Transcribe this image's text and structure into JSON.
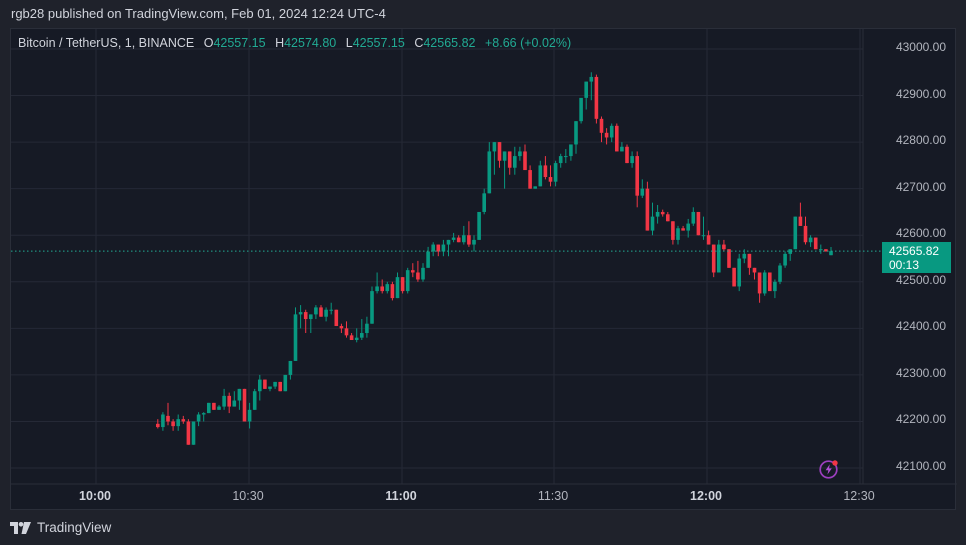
{
  "header": {
    "published_line": "rgb28 published on TradingView.com, Feb 01, 2024 12:24 UTC-4"
  },
  "legend": {
    "symbol": "Bitcoin / TetherUS, 1, BINANCE",
    "open_label": "O",
    "open": "42557.15",
    "high_label": "H",
    "high": "42574.80",
    "low_label": "L",
    "low": "42557.15",
    "close_label": "C",
    "close": "42565.82",
    "change": "+8.66 (+0.02%)"
  },
  "last_price": {
    "value": "42565.82",
    "countdown": "00:13"
  },
  "footer": {
    "brand": "TradingView"
  },
  "colors": {
    "up": "#089981",
    "down": "#f23645",
    "background": "#161a25",
    "grid": "#252936",
    "last_line": "#22ab94"
  },
  "chart_data": {
    "type": "candlestick",
    "title": "Bitcoin / TetherUS, 1, BINANCE",
    "xlabel": "",
    "ylabel": "",
    "ylim": [
      42070,
      43030
    ],
    "y_ticks": [
      "43000.00",
      "42900.00",
      "42800.00",
      "42700.00",
      "42600.00",
      "42500.00",
      "42400.00",
      "42300.00",
      "42200.00",
      "42100.00"
    ],
    "x_ticks": [
      {
        "label": "10:00",
        "bold": true
      },
      {
        "label": "10:30",
        "bold": false
      },
      {
        "label": "11:00",
        "bold": true
      },
      {
        "label": "11:30",
        "bold": false
      },
      {
        "label": "12:00",
        "bold": true
      },
      {
        "label": "12:30",
        "bold": false
      }
    ],
    "grid": true,
    "last_price": 42565.82,
    "candles_ohlc": [
      [
        42195,
        42205,
        42185,
        42188
      ],
      [
        42188,
        42220,
        42180,
        42215
      ],
      [
        42212,
        42240,
        42192,
        42200
      ],
      [
        42200,
        42205,
        42180,
        42190
      ],
      [
        42190,
        42215,
        42180,
        42205
      ],
      [
        42205,
        42212,
        42195,
        42200
      ],
      [
        42200,
        42205,
        42150,
        42150
      ],
      [
        42150,
        42200,
        42150,
        42200
      ],
      [
        42200,
        42220,
        42190,
        42215
      ],
      [
        42215,
        42220,
        42200,
        42218
      ],
      [
        42218,
        42240,
        42218,
        42240
      ],
      [
        42240,
        42240,
        42225,
        42225
      ],
      [
        42225,
        42235,
        42225,
        42232
      ],
      [
        42232,
        42270,
        42225,
        42255
      ],
      [
        42255,
        42262,
        42218,
        42232
      ],
      [
        42232,
        42265,
        42232,
        42245
      ],
      [
        42245,
        42270,
        42225,
        42270
      ],
      [
        42270,
        42270,
        42200,
        42200
      ],
      [
        42200,
        42240,
        42185,
        42225
      ],
      [
        42225,
        42270,
        42225,
        42265
      ],
      [
        42265,
        42300,
        42245,
        42290
      ],
      [
        42290,
        42290,
        42270,
        42270
      ],
      [
        42270,
        42275,
        42265,
        42275
      ],
      [
        42275,
        42285,
        42270,
        42285
      ],
      [
        42285,
        42285,
        42265,
        42265
      ],
      [
        42265,
        42300,
        42265,
        42300
      ],
      [
        42300,
        42330,
        42290,
        42330
      ],
      [
        42330,
        42445,
        42330,
        42430
      ],
      [
        42430,
        42450,
        42400,
        42435
      ],
      [
        42435,
        42440,
        42390,
        42420
      ],
      [
        42420,
        42430,
        42390,
        42430
      ],
      [
        42430,
        42450,
        42420,
        42445
      ],
      [
        42445,
        42450,
        42425,
        42425
      ],
      [
        42425,
        42445,
        42415,
        42440
      ],
      [
        42440,
        42455,
        42430,
        42440
      ],
      [
        42440,
        42440,
        42405,
        42405
      ],
      [
        42405,
        42410,
        42390,
        42400
      ],
      [
        42400,
        42415,
        42380,
        42385
      ],
      [
        42385,
        42390,
        42375,
        42375
      ],
      [
        42375,
        42400,
        42370,
        42380
      ],
      [
        42380,
        42420,
        42375,
        42390
      ],
      [
        42390,
        42425,
        42380,
        42410
      ],
      [
        42410,
        42490,
        42410,
        42480
      ],
      [
        42480,
        42520,
        42475,
        42490
      ],
      [
        42490,
        42505,
        42475,
        42480
      ],
      [
        42480,
        42500,
        42475,
        42495
      ],
      [
        42495,
        42500,
        42460,
        42465
      ],
      [
        42465,
        42520,
        42465,
        42510
      ],
      [
        42510,
        42510,
        42475,
        42480
      ],
      [
        42480,
        42530,
        42475,
        42525
      ],
      [
        42525,
        42540,
        42510,
        42520
      ],
      [
        42520,
        42545,
        42500,
        42505
      ],
      [
        42505,
        42540,
        42500,
        42530
      ],
      [
        42530,
        42575,
        42530,
        42565
      ],
      [
        42565,
        42585,
        42555,
        42580
      ],
      [
        42580,
        42580,
        42555,
        42565
      ],
      [
        42565,
        42590,
        42555,
        42580
      ],
      [
        42580,
        42590,
        42555,
        42590
      ],
      [
        42590,
        42605,
        42585,
        42595
      ],
      [
        42595,
        42600,
        42585,
        42585
      ],
      [
        42585,
        42620,
        42580,
        42600
      ],
      [
        42600,
        42630,
        42575,
        42580
      ],
      [
        42580,
        42600,
        42565,
        42590
      ],
      [
        42590,
        42650,
        42590,
        42650
      ],
      [
        42650,
        42700,
        42645,
        42690
      ],
      [
        42690,
        42800,
        42690,
        42780
      ],
      [
        42780,
        42800,
        42730,
        42800
      ],
      [
        42800,
        42800,
        42745,
        42760
      ],
      [
        42760,
        42780,
        42700,
        42780
      ],
      [
        42780,
        42780,
        42730,
        42745
      ],
      [
        42745,
        42790,
        42730,
        42770
      ],
      [
        42770,
        42790,
        42760,
        42780
      ],
      [
        42780,
        42795,
        42740,
        42740
      ],
      [
        42740,
        42750,
        42700,
        42700
      ],
      [
        42700,
        42705,
        42700,
        42705
      ],
      [
        42705,
        42760,
        42705,
        42750
      ],
      [
        42750,
        42770,
        42720,
        42725
      ],
      [
        42725,
        42750,
        42705,
        42715
      ],
      [
        42715,
        42760,
        42705,
        42755
      ],
      [
        42755,
        42775,
        42745,
        42770
      ],
      [
        42770,
        42785,
        42755,
        42770
      ],
      [
        42770,
        42790,
        42760,
        42795
      ],
      [
        42795,
        42845,
        42775,
        42845
      ],
      [
        42845,
        42890,
        42840,
        42895
      ],
      [
        42895,
        42930,
        42870,
        42930
      ],
      [
        42930,
        42950,
        42890,
        42940
      ],
      [
        42940,
        42945,
        42840,
        42850
      ],
      [
        42850,
        42855,
        42800,
        42820
      ],
      [
        42820,
        42830,
        42795,
        42810
      ],
      [
        42810,
        42840,
        42800,
        42835
      ],
      [
        42835,
        42840,
        42780,
        42780
      ],
      [
        42780,
        42800,
        42780,
        42790
      ],
      [
        42790,
        42795,
        42755,
        42755
      ],
      [
        42755,
        42780,
        42745,
        42770
      ],
      [
        42770,
        42780,
        42660,
        42685
      ],
      [
        42685,
        42720,
        42680,
        42700
      ],
      [
        42700,
        42715,
        42610,
        42610
      ],
      [
        42610,
        42670,
        42600,
        42640
      ],
      [
        42640,
        42665,
        42625,
        42650
      ],
      [
        42650,
        42655,
        42640,
        42645
      ],
      [
        42645,
        42650,
        42630,
        42630
      ],
      [
        42630,
        42630,
        42580,
        42590
      ],
      [
        42590,
        42620,
        42580,
        42615
      ],
      [
        42615,
        42620,
        42610,
        42610
      ],
      [
        42610,
        42635,
        42595,
        42625
      ],
      [
        42625,
        42660,
        42620,
        42650
      ],
      [
        42650,
        42650,
        42600,
        42600
      ],
      [
        42600,
        42640,
        42590,
        42600
      ],
      [
        42600,
        42610,
        42580,
        42580
      ],
      [
        42580,
        42580,
        42510,
        42520
      ],
      [
        42520,
        42590,
        42520,
        42580
      ],
      [
        42580,
        42590,
        42565,
        42570
      ],
      [
        42570,
        42570,
        42530,
        42530
      ],
      [
        42530,
        42530,
        42490,
        42490
      ],
      [
        42490,
        42560,
        42480,
        42550
      ],
      [
        42550,
        42570,
        42540,
        42560
      ],
      [
        42560,
        42560,
        42515,
        42530
      ],
      [
        42530,
        42530,
        42505,
        42520
      ],
      [
        42520,
        42520,
        42455,
        42475
      ],
      [
        42475,
        42525,
        42470,
        42520
      ],
      [
        42520,
        42520,
        42485,
        42480
      ],
      [
        42480,
        42505,
        42465,
        42500
      ],
      [
        42500,
        42540,
        42495,
        42535
      ],
      [
        42535,
        42565,
        42530,
        42560
      ],
      [
        42560,
        42570,
        42545,
        42570
      ],
      [
        42570,
        42640,
        42570,
        42640
      ],
      [
        42640,
        42670,
        42620,
        42620
      ],
      [
        42620,
        42640,
        42580,
        42585
      ],
      [
        42585,
        42600,
        42575,
        42595
      ],
      [
        42595,
        42595,
        42570,
        42570
      ],
      [
        42570,
        42580,
        42560,
        42570
      ],
      [
        42570,
        42570,
        42565,
        42565
      ],
      [
        42557.15,
        42574.8,
        42557.15,
        42565.82
      ]
    ]
  }
}
